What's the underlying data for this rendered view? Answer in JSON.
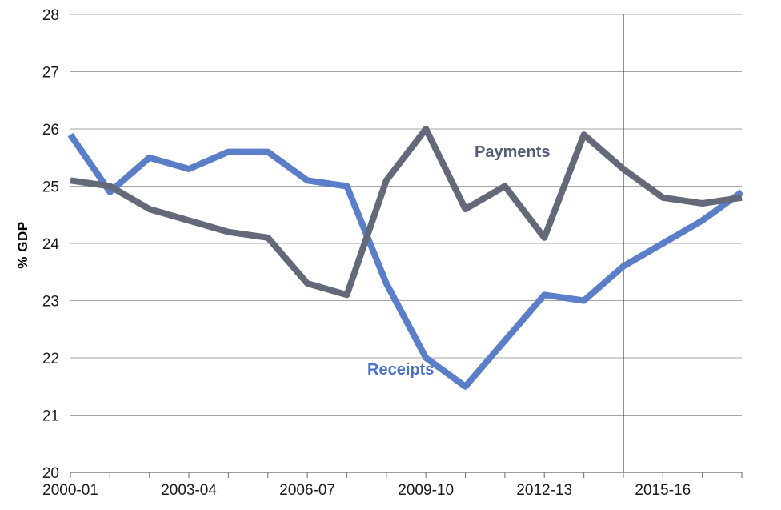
{
  "chart_data": {
    "type": "line",
    "title": "",
    "ylabel": "% GDP",
    "xlabel": "",
    "categories": [
      "2000-01",
      "2001-02",
      "2002-03",
      "2003-04",
      "2004-05",
      "2005-06",
      "2006-07",
      "2007-08",
      "2008-09",
      "2009-10",
      "2010-11",
      "2011-12",
      "2012-13",
      "2013-14",
      "2014-15",
      "2015-16",
      "2016-17",
      "2017-18"
    ],
    "x_tick_label_every": 3,
    "x_tick_labels_shown": [
      "2000-01",
      "2003-04",
      "2006-07",
      "2009-10",
      "2012-13",
      "2015-16"
    ],
    "ylim": [
      20,
      28
    ],
    "y_ticks": [
      20,
      21,
      22,
      23,
      24,
      25,
      26,
      27,
      28
    ],
    "grid": "horizontal",
    "legend_position": "inline-labels-on-plot",
    "series": [
      {
        "name": "Receipts",
        "values": [
          25.9,
          24.9,
          25.5,
          25.3,
          25.6,
          25.6,
          25.1,
          25.0,
          23.3,
          22.0,
          21.5,
          22.3,
          23.1,
          23.0,
          23.6,
          24.0,
          24.4,
          24.9
        ],
        "line_color": "#5b7ec9",
        "label_color": "#4a72c4"
      },
      {
        "name": "Payments",
        "values": [
          25.1,
          25.0,
          24.6,
          24.4,
          24.2,
          24.1,
          23.3,
          23.1,
          25.1,
          26.0,
          24.6,
          25.0,
          24.1,
          25.9,
          25.3,
          24.8,
          24.7,
          24.8
        ],
        "line_color": "#636978",
        "label_color": "#545d75"
      }
    ],
    "annotations": [
      {
        "type": "vline",
        "x_category": "2014-15",
        "color": "#333333"
      }
    ]
  },
  "labels": {
    "receipts": "Receipts",
    "payments": "Payments",
    "y_axis_title": "% GDP"
  },
  "colors": {
    "background": "#ffffff",
    "gridline": "#a6a6a6",
    "axis": "#7f7f7f",
    "tick_text": "#1a1a1a",
    "receipts_line": "#5b7ec9",
    "payments_line": "#636978",
    "vline": "#333333"
  }
}
